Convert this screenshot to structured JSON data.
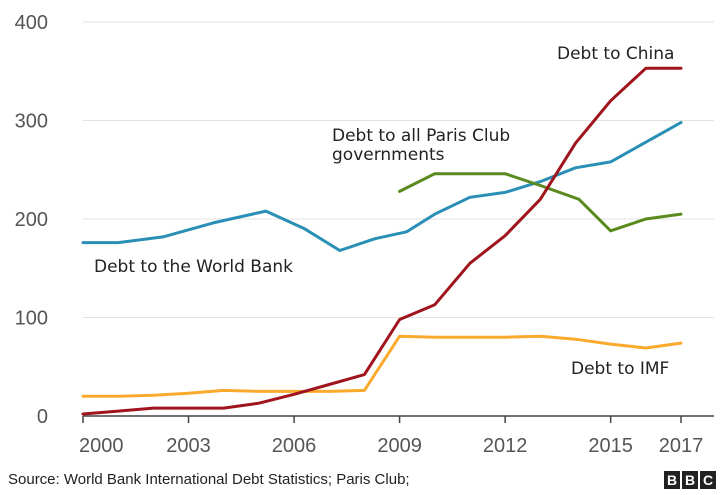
{
  "chart_data": {
    "type": "line",
    "x_ticks": [
      "2000",
      "2003",
      "2006",
      "2009",
      "2012",
      "2015",
      "2017"
    ],
    "y_ticks": [
      "0",
      "100",
      "200",
      "300",
      "400"
    ],
    "xlim": [
      2000,
      2017.6
    ],
    "ylim": [
      0,
      400
    ],
    "grid": true,
    "series": [
      {
        "name": "Debt to the World Bank",
        "color": "#2a8fb5",
        "x": [
          2000,
          2001,
          2002.3,
          2003.7,
          2005.2,
          2006.3,
          2007.3,
          2008.3,
          2009.2,
          2010,
          2011,
          2012,
          2013,
          2014,
          2015,
          2016,
          2017
        ],
        "y": [
          176,
          176,
          182,
          196,
          208,
          190,
          168,
          180,
          187,
          205,
          222,
          227,
          238,
          252,
          258,
          278,
          298
        ]
      },
      {
        "name": "Debt to all Paris Club governments",
        "color": "#5a8a1e",
        "x": [
          2009,
          2010,
          2011,
          2012,
          2013,
          2014.1,
          2015,
          2016,
          2017
        ],
        "y": [
          228,
          246,
          246,
          246,
          234,
          220,
          188,
          200,
          205
        ]
      },
      {
        "name": "Debt to China",
        "color": "#a0141e",
        "x": [
          2000,
          2001,
          2002,
          2003,
          2004,
          2005,
          2006,
          2007,
          2008,
          2009,
          2010,
          2011,
          2012,
          2013,
          2014,
          2015,
          2016,
          2016.7,
          2017
        ],
        "y": [
          2,
          5,
          8,
          8,
          8,
          13,
          22,
          32,
          42,
          98,
          113,
          155,
          183,
          220,
          277,
          320,
          353,
          353,
          353
        ]
      },
      {
        "name": "Debt to IMF",
        "color": "#fbaa2d",
        "x": [
          2000,
          2001,
          2002,
          2003,
          2004,
          2005,
          2006,
          2007,
          2008,
          2009,
          2010,
          2011,
          2012,
          2013,
          2014,
          2015,
          2016,
          2017
        ],
        "y": [
          20,
          20,
          21,
          23,
          26,
          25,
          25,
          25,
          26,
          81,
          80,
          80,
          80,
          81,
          78,
          73,
          69,
          74
        ]
      }
    ]
  },
  "footer": {
    "source": "Source: World Bank International Debt Statistics; Paris Club;",
    "logo_letters": [
      "B",
      "B",
      "C"
    ]
  }
}
